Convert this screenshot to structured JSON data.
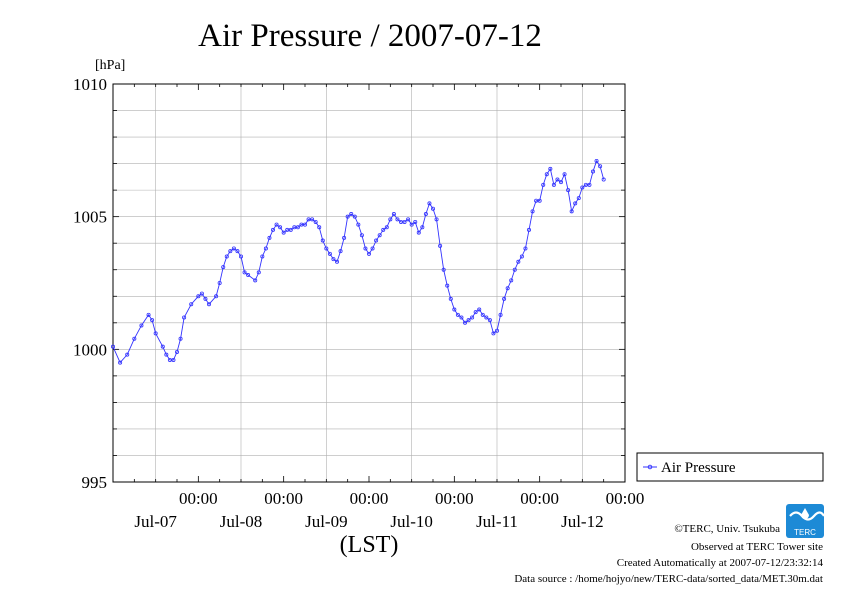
{
  "chart_data": {
    "type": "line",
    "title": "Air Pressure / 2007-07-12",
    "ylabel": "[hPa]",
    "xlabel": "(LST)",
    "ylim": [
      995,
      1010
    ],
    "yticks": [
      "995",
      "1000",
      "1005",
      "1010"
    ],
    "x_hours_range": [
      0,
      144
    ],
    "date_ticks": [
      {
        "time_label": "00:00",
        "date_label": "Jul-07"
      },
      {
        "time_label": "00:00",
        "date_label": "Jul-08"
      },
      {
        "time_label": "00:00",
        "date_label": "Jul-09"
      },
      {
        "time_label": "00:00",
        "date_label": "Jul-10"
      },
      {
        "time_label": "00:00",
        "date_label": "Jul-11"
      },
      {
        "time_label": "00:00",
        "date_label": "Jul-12"
      }
    ],
    "grid": true,
    "legend_position": "right",
    "series": [
      {
        "name": "Air Pressure",
        "color": "#3333ff",
        "points": [
          [
            0,
            1000.1
          ],
          [
            2,
            999.5
          ],
          [
            4,
            999.8
          ],
          [
            6,
            1000.4
          ],
          [
            8,
            1000.9
          ],
          [
            10,
            1001.3
          ],
          [
            11,
            1001.1
          ],
          [
            12,
            1000.6
          ],
          [
            14,
            1000.1
          ],
          [
            15,
            999.8
          ],
          [
            16,
            999.6
          ],
          [
            17,
            999.6
          ],
          [
            18,
            999.9
          ],
          [
            19,
            1000.4
          ],
          [
            20,
            1001.2
          ],
          [
            22,
            1001.7
          ],
          [
            24,
            1002.0
          ],
          [
            25,
            1002.1
          ],
          [
            26,
            1001.9
          ],
          [
            27,
            1001.7
          ],
          [
            29,
            1002.0
          ],
          [
            30,
            1002.5
          ],
          [
            31,
            1003.1
          ],
          [
            32,
            1003.5
          ],
          [
            33,
            1003.7
          ],
          [
            34,
            1003.8
          ],
          [
            35,
            1003.7
          ],
          [
            36,
            1003.5
          ],
          [
            37,
            1002.9
          ],
          [
            38,
            1002.8
          ],
          [
            40,
            1002.6
          ],
          [
            41,
            1002.9
          ],
          [
            42,
            1003.5
          ],
          [
            43,
            1003.8
          ],
          [
            44,
            1004.2
          ],
          [
            45,
            1004.5
          ],
          [
            46,
            1004.7
          ],
          [
            47,
            1004.6
          ],
          [
            48,
            1004.4
          ],
          [
            49,
            1004.5
          ],
          [
            50,
            1004.5
          ],
          [
            51,
            1004.6
          ],
          [
            52,
            1004.6
          ],
          [
            53,
            1004.7
          ],
          [
            54,
            1004.7
          ],
          [
            55,
            1004.9
          ],
          [
            56,
            1004.9
          ],
          [
            57,
            1004.8
          ],
          [
            58,
            1004.6
          ],
          [
            59,
            1004.1
          ],
          [
            60,
            1003.8
          ],
          [
            61,
            1003.6
          ],
          [
            62,
            1003.4
          ],
          [
            63,
            1003.3
          ],
          [
            64,
            1003.7
          ],
          [
            65,
            1004.2
          ],
          [
            66,
            1005.0
          ],
          [
            67,
            1005.1
          ],
          [
            68,
            1005.0
          ],
          [
            69,
            1004.7
          ],
          [
            70,
            1004.3
          ],
          [
            71,
            1003.8
          ],
          [
            72,
            1003.6
          ],
          [
            73,
            1003.8
          ],
          [
            74,
            1004.1
          ],
          [
            75,
            1004.3
          ],
          [
            76,
            1004.5
          ],
          [
            77,
            1004.6
          ],
          [
            78,
            1004.9
          ],
          [
            79,
            1005.1
          ],
          [
            80,
            1004.9
          ],
          [
            81,
            1004.8
          ],
          [
            82,
            1004.8
          ],
          [
            83,
            1004.9
          ],
          [
            84,
            1004.7
          ],
          [
            85,
            1004.8
          ],
          [
            86,
            1004.4
          ],
          [
            87,
            1004.6
          ],
          [
            88,
            1005.1
          ],
          [
            89,
            1005.5
          ],
          [
            90,
            1005.3
          ],
          [
            91,
            1004.9
          ],
          [
            92,
            1003.9
          ],
          [
            93,
            1003.0
          ],
          [
            94,
            1002.4
          ],
          [
            95,
            1001.9
          ],
          [
            96,
            1001.5
          ],
          [
            97,
            1001.3
          ],
          [
            98,
            1001.2
          ],
          [
            99,
            1001.0
          ],
          [
            100,
            1001.1
          ],
          [
            101,
            1001.2
          ],
          [
            102,
            1001.4
          ],
          [
            103,
            1001.5
          ],
          [
            104,
            1001.3
          ],
          [
            105,
            1001.2
          ],
          [
            106,
            1001.1
          ],
          [
            107,
            1000.6
          ],
          [
            108,
            1000.7
          ],
          [
            109,
            1001.3
          ],
          [
            110,
            1001.9
          ],
          [
            111,
            1002.3
          ],
          [
            112,
            1002.6
          ],
          [
            113,
            1003.0
          ],
          [
            114,
            1003.3
          ],
          [
            115,
            1003.5
          ],
          [
            116,
            1003.8
          ],
          [
            117,
            1004.5
          ],
          [
            118,
            1005.2
          ],
          [
            119,
            1005.6
          ],
          [
            120,
            1005.6
          ],
          [
            121,
            1006.2
          ],
          [
            122,
            1006.6
          ],
          [
            123,
            1006.8
          ],
          [
            124,
            1006.2
          ],
          [
            125,
            1006.4
          ],
          [
            126,
            1006.3
          ],
          [
            127,
            1006.6
          ],
          [
            128,
            1006.0
          ],
          [
            129,
            1005.2
          ],
          [
            130,
            1005.5
          ],
          [
            131,
            1005.7
          ],
          [
            132,
            1006.1
          ],
          [
            133,
            1006.2
          ],
          [
            134,
            1006.2
          ],
          [
            135,
            1006.7
          ],
          [
            136,
            1007.1
          ],
          [
            137,
            1006.9
          ],
          [
            138,
            1006.4
          ]
        ]
      }
    ]
  },
  "credits": {
    "copyright": "©TERC, Univ. Tsukuba",
    "observed": "Observed at TERC Tower site",
    "created": "Created Automatically at 2007-07-12/23:32:14",
    "source": "Data source : /home/hojyo/new/TERC-data/sorted_data/MET.30m.dat",
    "logo_text": "TERC"
  }
}
